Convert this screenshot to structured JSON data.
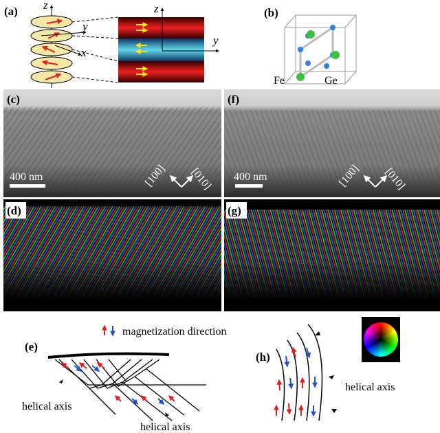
{
  "panels": {
    "a": {
      "label": "(a)",
      "axes": [
        "z",
        "y",
        "x"
      ],
      "block_axes": [
        "z",
        "y"
      ]
    },
    "b": {
      "label": "(b)",
      "atoms": [
        "Fe",
        "Ge"
      ]
    },
    "c": {
      "label": "(c)",
      "scale_bar": "400 nm",
      "directions": [
        "[100]",
        "[010]"
      ]
    },
    "f": {
      "label": "(f)",
      "scale_bar": "400 nm",
      "directions": [
        "[100]",
        "[010]"
      ]
    },
    "d": {
      "label": "(d)"
    },
    "g": {
      "label": "(g)"
    },
    "e": {
      "label": "(e)",
      "helical_axis": [
        "helical axis",
        "helical axis"
      ]
    },
    "h": {
      "label": "(h)",
      "helical_axis": "helical axis"
    }
  },
  "legend": "magnetization direction"
}
